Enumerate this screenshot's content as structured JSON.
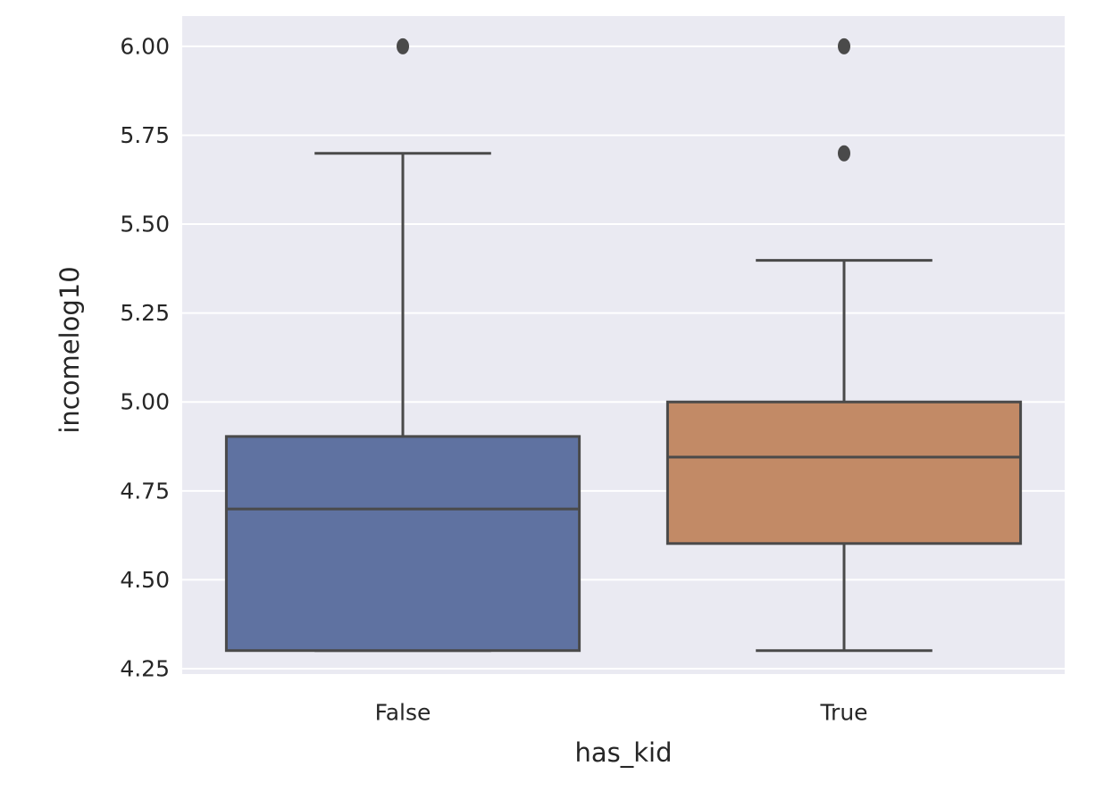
{
  "chart_data": {
    "type": "box",
    "xlabel": "has_kid",
    "ylabel": "incomelog10",
    "ylim": [
      4.235,
      6.085
    ],
    "yticks": [
      4.25,
      4.5,
      4.75,
      5.0,
      5.25,
      5.5,
      5.75,
      6.0
    ],
    "ytick_labels": [
      "4.25",
      "4.50",
      "4.75",
      "5.00",
      "5.25",
      "5.50",
      "5.75",
      "6.00"
    ],
    "grid": true,
    "categories": [
      "False",
      "True"
    ],
    "boxes": [
      {
        "category": "False",
        "whisker_low": 4.301,
        "q1": 4.301,
        "median": 4.699,
        "q3": 4.903,
        "whisker_high": 5.699,
        "outliers": [
          6.0
        ],
        "color": "#5f72a1"
      },
      {
        "category": "True",
        "whisker_low": 4.301,
        "q1": 4.602,
        "median": 4.845,
        "q3": 5.0,
        "whisker_high": 5.398,
        "outliers": [
          5.699,
          6.0
        ],
        "color": "#c28a66"
      }
    ],
    "colors": {
      "background": "#eaeaf2",
      "grid": "#ffffff",
      "line": "#4a4a4a",
      "text": "#262626"
    }
  }
}
